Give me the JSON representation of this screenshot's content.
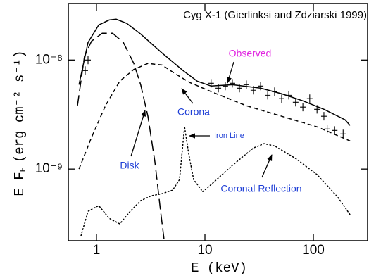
{
  "chart_data": {
    "type": "line",
    "title": "Cyg X-1 (Gierlinksi and Zdziarski 1999)",
    "x_label": "E (keV)",
    "y_label": {
      "main": "E F",
      "subscript": "E",
      "units": "(erg cm⁻² s⁻¹)"
    },
    "xlog": true,
    "ylog": true,
    "xlim": [
      0.55,
      316
    ],
    "ylim": [
      2.2e-10,
      3.3e-08
    ],
    "xticks": [
      1,
      10,
      100
    ],
    "yticks": [
      {
        "value": 1e-08,
        "label": "10⁻⁸"
      },
      {
        "value": 1e-09,
        "label": "10⁻⁹"
      }
    ],
    "annotations": [
      "Iron Line"
    ],
    "series": [
      {
        "color": "#000000",
        "style": "solid",
        "x": [
          0.69,
          0.836,
          1.05,
          1.31,
          1.52,
          1.9,
          2.56,
          4.02,
          6.29,
          8.49,
          11.4,
          17.9,
          32.6,
          51,
          80,
          125,
          196,
          218
        ],
        "values": [
          5.94e-09,
          1.45e-08,
          2.1e-08,
          2.33e-08,
          2.37e-08,
          2.17e-08,
          1.73e-08,
          1.16e-08,
          8e-09,
          6.4e-09,
          5.77e-09,
          5.94e-09,
          5.52e-09,
          4.9e-09,
          4.22e-09,
          3.53e-09,
          2.83e-09,
          2.51e-09
        ]
      },
      {
        "name": "Observed",
        "color": "#e020e0",
        "style": "crosses",
        "x": [
          0.787,
          0.836,
          11.4,
          13.3,
          15.4,
          17.9,
          20.8,
          24.1,
          28,
          32.6,
          37.9,
          43.9,
          51,
          59.3,
          68.6,
          80,
          92.5,
          108,
          125,
          134,
          157,
          188
        ],
        "values": [
          8e-09,
          1e-08,
          6.12e-09,
          5.52e-09,
          5.77e-09,
          6.12e-09,
          5.52e-09,
          5.94e-09,
          5.28e-09,
          5.77e-09,
          4.75e-09,
          5.13e-09,
          4.42e-09,
          4.75e-09,
          4.1e-09,
          3.7e-09,
          4.42e-09,
          3.53e-09,
          3.05e-09,
          2.33e-09,
          2.26e-09,
          2.1e-09
        ]
      },
      {
        "name": "Corona",
        "color": "#1f3fd6",
        "style": "dashed",
        "x": [
          0.69,
          0.9,
          1.21,
          1.64,
          2.21,
          2.98,
          4.02,
          5.42,
          7.3,
          11.4,
          24.1,
          51,
          108,
          218
        ],
        "values": [
          1e-09,
          1.95e-09,
          3.81e-09,
          6.4e-09,
          8.2e-09,
          9.3e-09,
          9e-09,
          7.4e-09,
          6.2e-09,
          5.13e-09,
          3.81e-09,
          3.05e-09,
          2.44e-09,
          1.81e-09
        ]
      },
      {
        "name": "Disk",
        "color": "#1f3fd6",
        "style": "longdash",
        "x": [
          0.668,
          0.775,
          0.9,
          1.13,
          1.41,
          1.77,
          2.21,
          2.56,
          2.98,
          3.46,
          3.9,
          4.2
        ],
        "values": [
          3.81e-09,
          1.08e-08,
          1.49e-08,
          1.76e-08,
          1.76e-08,
          1.45e-08,
          9.3e-09,
          5.9e-09,
          3.05e-09,
          1.16e-09,
          4.1e-10,
          2.26e-10
        ]
      },
      {
        "name": "Coronal Reflection",
        "color": "#1f3fd6",
        "style": "dotted",
        "x": [
          0.72,
          0.836,
          1.05,
          1.31,
          1.64,
          2.05,
          2.56,
          3.21,
          4.02,
          5.03,
          5.83,
          6.49,
          7.11,
          7.87,
          9.55,
          11.4,
          17.9,
          28,
          35.1,
          43.9,
          68.6,
          108,
          168,
          218
        ],
        "values": [
          2.44e-10,
          4.1e-10,
          4.62e-10,
          3.53e-10,
          3.14e-10,
          4.1e-10,
          5.13e-10,
          5.69e-10,
          5.94e-10,
          6.4e-10,
          8e-10,
          2.44e-09,
          1.35e-09,
          8e-10,
          6.2e-10,
          7.2e-10,
          1.08e-09,
          1.56e-09,
          1.71e-09,
          1.63e-09,
          1.25e-09,
          8.9e-10,
          5.52e-10,
          3.81e-10
        ]
      }
    ]
  }
}
